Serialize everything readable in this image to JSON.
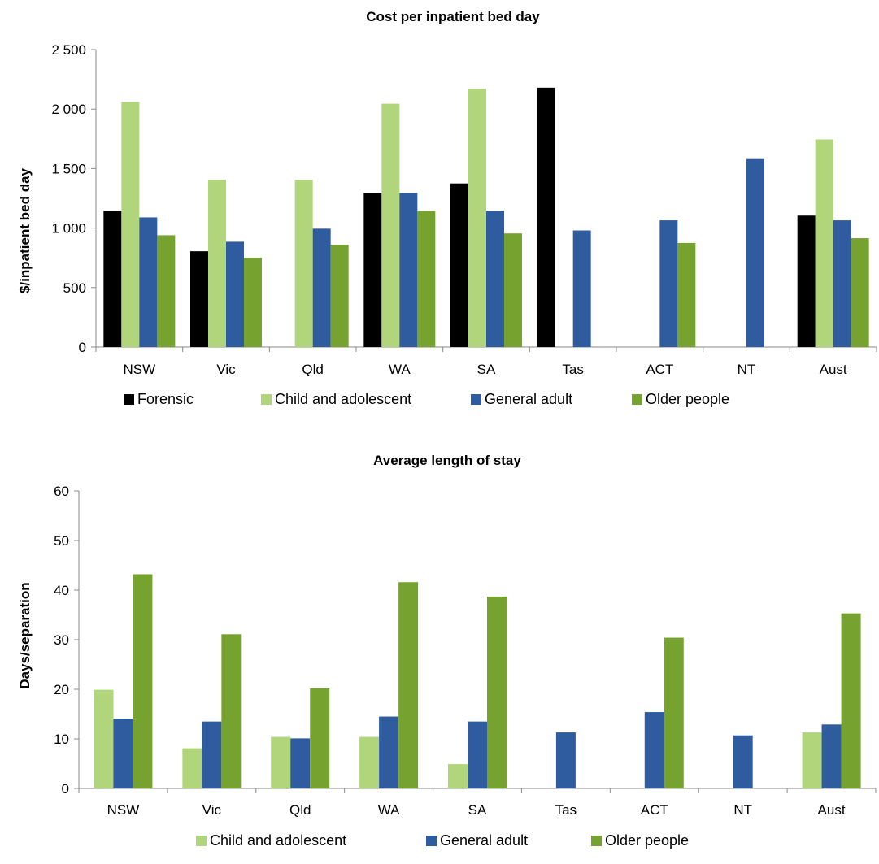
{
  "colors": {
    "Forensic": "#000000",
    "Child and adolescent": "#b0d57a",
    "General adult": "#2e5c9e",
    "Older people": "#76a230",
    "axis": "#888888"
  },
  "chart_data": [
    {
      "type": "bar",
      "title": "Cost per inpatient bed day",
      "xlabel": "",
      "ylabel": "$/inpatient bed day",
      "ylim": [
        0,
        2500
      ],
      "yticks": [
        {
          "value": 0,
          "label": "0"
        },
        {
          "value": 500,
          "label": "500"
        },
        {
          "value": 1000,
          "label": "1 000"
        },
        {
          "value": 1500,
          "label": "1 500"
        },
        {
          "value": 2000,
          "label": "2 000"
        },
        {
          "value": 2500,
          "label": "2 500"
        }
      ],
      "grid": false,
      "legend_position": "bottom",
      "categories": [
        "NSW",
        "Vic",
        "Qld",
        "WA",
        "SA",
        "Tas",
        "ACT",
        "NT",
        "Aust"
      ],
      "series": [
        {
          "name": "Forensic",
          "values": [
            1145,
            805,
            null,
            1295,
            1375,
            2180,
            null,
            null,
            1105
          ]
        },
        {
          "name": "Child and adolescent",
          "values": [
            2060,
            1405,
            1405,
            2045,
            2170,
            null,
            null,
            null,
            1745
          ]
        },
        {
          "name": "General adult",
          "values": [
            1090,
            885,
            995,
            1295,
            1145,
            980,
            1065,
            1580,
            1065
          ]
        },
        {
          "name": "Older people",
          "values": [
            940,
            750,
            860,
            1145,
            955,
            null,
            875,
            null,
            915
          ]
        }
      ]
    },
    {
      "type": "bar",
      "title": "Average length of stay",
      "xlabel": "",
      "ylabel": "Days/separation",
      "ylim": [
        0,
        60
      ],
      "yticks": [
        {
          "value": 0,
          "label": "0"
        },
        {
          "value": 10,
          "label": "10"
        },
        {
          "value": 20,
          "label": "20"
        },
        {
          "value": 30,
          "label": "30"
        },
        {
          "value": 40,
          "label": "40"
        },
        {
          "value": 50,
          "label": "50"
        },
        {
          "value": 60,
          "label": "60"
        }
      ],
      "grid": false,
      "legend_position": "bottom",
      "categories": [
        "NSW",
        "Vic",
        "Qld",
        "WA",
        "SA",
        "Tas",
        "ACT",
        "NT",
        "Aust"
      ],
      "series": [
        {
          "name": "Child and adolescent",
          "values": [
            19.9,
            8.1,
            10.4,
            10.4,
            4.9,
            null,
            null,
            null,
            11.3
          ]
        },
        {
          "name": "General adult",
          "values": [
            14.1,
            13.5,
            10.1,
            14.5,
            13.5,
            11.3,
            15.4,
            10.7,
            12.9
          ]
        },
        {
          "name": "Older people",
          "values": [
            43.2,
            31.1,
            20.2,
            41.6,
            38.7,
            null,
            30.4,
            null,
            35.3
          ]
        }
      ]
    }
  ]
}
